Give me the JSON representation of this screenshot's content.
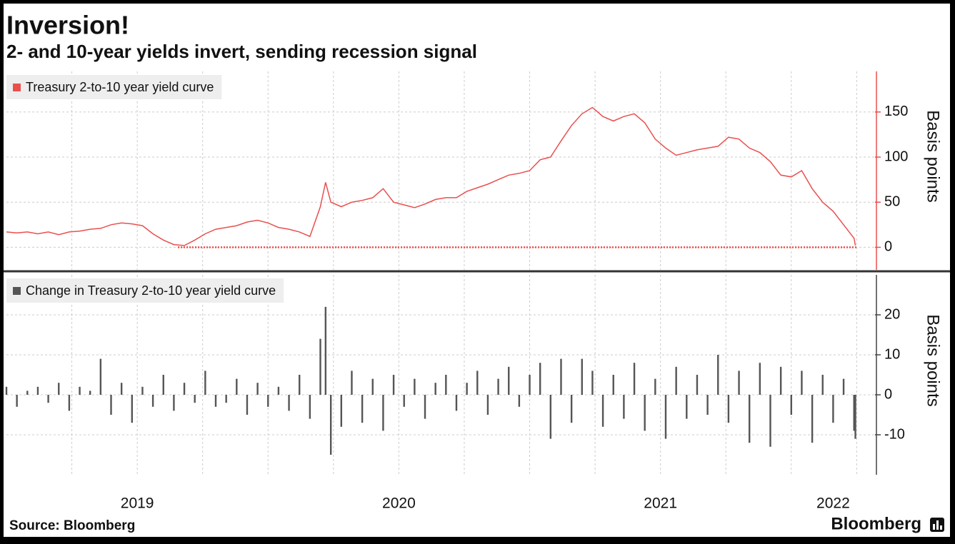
{
  "chart_data": [
    {
      "type": "line",
      "title": "Inversion!",
      "subtitle": "2- and 10-year yields invert, sending recession signal",
      "x": [
        2019.0,
        2019.04,
        2019.08,
        2019.12,
        2019.16,
        2019.2,
        2019.24,
        2019.28,
        2019.32,
        2019.36,
        2019.4,
        2019.44,
        2019.48,
        2019.52,
        2019.56,
        2019.6,
        2019.64,
        2019.68,
        2019.72,
        2019.76,
        2019.8,
        2019.84,
        2019.88,
        2019.92,
        2019.96,
        2020.0,
        2020.04,
        2020.08,
        2020.12,
        2020.16,
        2020.2,
        2020.22,
        2020.24,
        2020.28,
        2020.32,
        2020.36,
        2020.4,
        2020.44,
        2020.48,
        2020.52,
        2020.56,
        2020.6,
        2020.64,
        2020.68,
        2020.72,
        2020.76,
        2020.8,
        2020.84,
        2020.88,
        2020.92,
        2020.96,
        2021.0,
        2021.04,
        2021.08,
        2021.12,
        2021.16,
        2021.2,
        2021.24,
        2021.28,
        2021.32,
        2021.36,
        2021.4,
        2021.44,
        2021.48,
        2021.52,
        2021.56,
        2021.6,
        2021.64,
        2021.68,
        2021.72,
        2021.76,
        2021.8,
        2021.84,
        2021.88,
        2021.92,
        2021.96,
        2022.0,
        2022.04,
        2022.08,
        2022.12,
        2022.16,
        2022.2,
        2022.24,
        2022.245
      ],
      "series": [
        {
          "name": "Treasury 2-to-10 year yield curve",
          "color": "#e8504f",
          "values": [
            17,
            16,
            17,
            15,
            17,
            14,
            17,
            18,
            20,
            21,
            25,
            27,
            26,
            24,
            15,
            8,
            3,
            2,
            8,
            15,
            20,
            22,
            24,
            28,
            30,
            27,
            22,
            20,
            17,
            12,
            45,
            72,
            50,
            45,
            50,
            52,
            55,
            65,
            50,
            47,
            44,
            48,
            53,
            55,
            55,
            62,
            66,
            70,
            75,
            80,
            82,
            85,
            97,
            100,
            118,
            135,
            148,
            155,
            145,
            140,
            145,
            148,
            138,
            120,
            110,
            102,
            105,
            108,
            110,
            112,
            122,
            120,
            110,
            105,
            95,
            80,
            78,
            85,
            65,
            50,
            40,
            25,
            10,
            2
          ]
        }
      ],
      "xlim": [
        2019.0,
        2022.32
      ],
      "xgrid": [
        2019.25,
        2019.5,
        2019.75,
        2020.0,
        2020.25,
        2020.5,
        2020.75,
        2021.0,
        2021.25,
        2021.5,
        2021.75,
        2022.0,
        2022.25
      ],
      "ylim": [
        -25,
        195
      ],
      "yticks": [
        0,
        50,
        100,
        150
      ],
      "ylabel": "Basis points",
      "reference_line": 0
    },
    {
      "type": "bar",
      "x": [
        2019.0,
        2019.04,
        2019.08,
        2019.12,
        2019.16,
        2019.2,
        2019.24,
        2019.28,
        2019.32,
        2019.36,
        2019.4,
        2019.44,
        2019.48,
        2019.52,
        2019.56,
        2019.6,
        2019.64,
        2019.68,
        2019.72,
        2019.76,
        2019.8,
        2019.84,
        2019.88,
        2019.92,
        2019.96,
        2020.0,
        2020.04,
        2020.08,
        2020.12,
        2020.16,
        2020.2,
        2020.22,
        2020.24,
        2020.28,
        2020.32,
        2020.36,
        2020.4,
        2020.44,
        2020.48,
        2020.52,
        2020.56,
        2020.6,
        2020.64,
        2020.68,
        2020.72,
        2020.76,
        2020.8,
        2020.84,
        2020.88,
        2020.92,
        2020.96,
        2021.0,
        2021.04,
        2021.08,
        2021.12,
        2021.16,
        2021.2,
        2021.24,
        2021.28,
        2021.32,
        2021.36,
        2021.4,
        2021.44,
        2021.48,
        2021.52,
        2021.56,
        2021.6,
        2021.64,
        2021.68,
        2021.72,
        2021.76,
        2021.8,
        2021.84,
        2021.88,
        2021.92,
        2021.96,
        2022.0,
        2022.04,
        2022.08,
        2022.12,
        2022.16,
        2022.2,
        2022.24,
        2022.245
      ],
      "series": [
        {
          "name": "Change in Treasury 2-to-10 year yield curve",
          "color": "#555555",
          "values": [
            2,
            -3,
            1,
            2,
            -2,
            3,
            -4,
            2,
            1,
            9,
            -5,
            3,
            -7,
            2,
            -3,
            5,
            -4,
            3,
            -2,
            6,
            -3,
            -2,
            4,
            -5,
            3,
            -3,
            2,
            -4,
            5,
            -6,
            14,
            22,
            -15,
            -8,
            6,
            -7,
            4,
            -9,
            5,
            -3,
            4,
            -6,
            3,
            5,
            -4,
            3,
            6,
            -5,
            4,
            7,
            -3,
            5,
            8,
            -11,
            9,
            -7,
            9,
            6,
            -8,
            5,
            -6,
            8,
            -9,
            4,
            -11,
            7,
            -6,
            5,
            -5,
            10,
            -7,
            6,
            -12,
            8,
            -13,
            7,
            -5,
            6,
            -12,
            5,
            -7,
            4,
            -9,
            -11
          ]
        }
      ],
      "xlim": [
        2019.0,
        2022.32
      ],
      "xgrid": [
        2019.25,
        2019.5,
        2019.75,
        2020.0,
        2020.25,
        2020.5,
        2020.75,
        2021.0,
        2021.25,
        2021.5,
        2021.75,
        2022.0,
        2022.25
      ],
      "xticks": [
        {
          "value": 2019.5,
          "label": "2019"
        },
        {
          "value": 2020.5,
          "label": "2020"
        },
        {
          "value": 2021.5,
          "label": "2021"
        },
        {
          "value": 2022.16,
          "label": "2022"
        }
      ],
      "ylim": [
        -20,
        30
      ],
      "yticks": [
        -10,
        0,
        10,
        20
      ],
      "ylabel": "Basis points"
    }
  ],
  "source": "Source: Bloomberg",
  "brand": "Bloomberg"
}
